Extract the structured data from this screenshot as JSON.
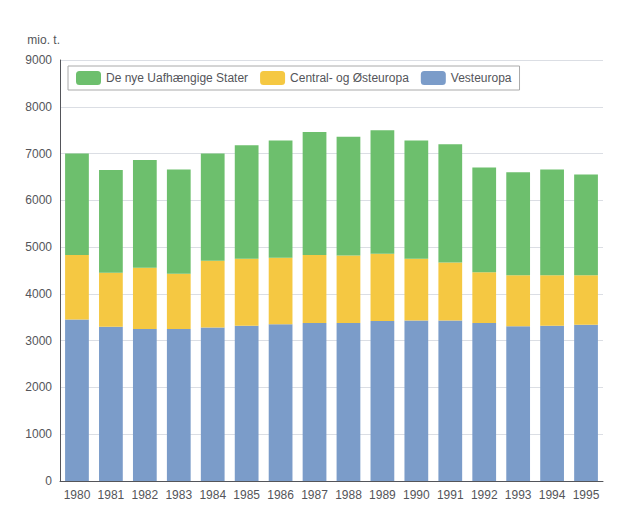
{
  "chart_data": {
    "type": "bar",
    "stacked": true,
    "y_label": "mio. t.",
    "categories": [
      "1980",
      "1981",
      "1982",
      "1983",
      "1984",
      "1985",
      "1986",
      "1987",
      "1988",
      "1989",
      "1990",
      "1991",
      "1992",
      "1993",
      "1994",
      "1995"
    ],
    "series": [
      {
        "name": "Vesteuropa",
        "color": "#7b9cc9",
        "values": [
          3450,
          3300,
          3250,
          3250,
          3280,
          3320,
          3350,
          3380,
          3380,
          3420,
          3430,
          3430,
          3380,
          3310,
          3320,
          3340
        ]
      },
      {
        "name": "Central- og Østeuropa",
        "color": "#f5c842",
        "values": [
          1380,
          1150,
          1310,
          1180,
          1430,
          1430,
          1420,
          1450,
          1440,
          1440,
          1320,
          1240,
          1080,
          1090,
          1080,
          1060
        ]
      },
      {
        "name": "De nye Uafhængige Stater",
        "color": "#6dbf6d",
        "values": [
          2170,
          2200,
          2300,
          2230,
          2290,
          2430,
          2510,
          2630,
          2540,
          2640,
          2530,
          2530,
          2240,
          2200,
          2260,
          2150
        ]
      }
    ],
    "ylim": [
      0,
      9000
    ],
    "yticks": [
      0,
      1000,
      2000,
      3000,
      4000,
      5000,
      6000,
      7000,
      8000,
      9000
    ],
    "grid": true,
    "legend": "upper left"
  }
}
